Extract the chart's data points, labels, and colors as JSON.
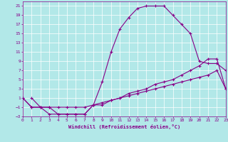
{
  "xlabel": "Windchill (Refroidissement éolien,°C)",
  "bg_color": "#b2e8e8",
  "grid_color": "#ffffff",
  "line_color": "#880088",
  "xlim": [
    0,
    23
  ],
  "ylim": [
    -3,
    22
  ],
  "xticks": [
    0,
    1,
    2,
    3,
    4,
    5,
    6,
    7,
    8,
    9,
    10,
    11,
    12,
    13,
    14,
    15,
    16,
    17,
    18,
    19,
    20,
    21,
    22,
    23
  ],
  "yticks": [
    -3,
    -1,
    1,
    3,
    5,
    7,
    9,
    11,
    13,
    15,
    17,
    19,
    21
  ],
  "line1_x": [
    1,
    2,
    3,
    4,
    5,
    6,
    7,
    8,
    9,
    10,
    11,
    12,
    13,
    14,
    15,
    16,
    17,
    18,
    19,
    20,
    21,
    22,
    23
  ],
  "line1_y": [
    1,
    -1,
    -1,
    -2.5,
    -2.5,
    -2.5,
    -2.5,
    -0.5,
    4.5,
    11,
    16,
    18.5,
    20.5,
    21,
    21,
    21,
    19,
    17,
    15,
    9,
    8.5,
    8.5,
    7
  ],
  "line2_x": [
    0,
    1,
    2,
    3,
    4,
    5,
    6,
    7,
    8,
    9,
    10,
    11,
    12,
    13,
    14,
    15,
    16,
    17,
    18,
    19,
    20,
    21,
    22,
    23
  ],
  "line2_y": [
    1,
    -1,
    -1,
    -2.5,
    -2.5,
    -2.5,
    -2.5,
    -2.5,
    -0.5,
    -0.5,
    0.5,
    1.0,
    2.0,
    2.5,
    3.0,
    4.0,
    4.5,
    5.0,
    6.0,
    7.0,
    8.0,
    9.5,
    9.5,
    3.0
  ],
  "line3_x": [
    0,
    1,
    2,
    3,
    4,
    5,
    6,
    7,
    8,
    9,
    10,
    11,
    12,
    13,
    14,
    15,
    16,
    17,
    18,
    19,
    20,
    21,
    22,
    23
  ],
  "line3_y": [
    1,
    -1,
    -1,
    -1,
    -1,
    -1,
    -1,
    -1,
    -0.5,
    0.0,
    0.5,
    1.0,
    1.5,
    2.0,
    2.5,
    3.0,
    3.5,
    4.0,
    4.5,
    5.0,
    5.5,
    6.0,
    7.0,
    3.0
  ]
}
